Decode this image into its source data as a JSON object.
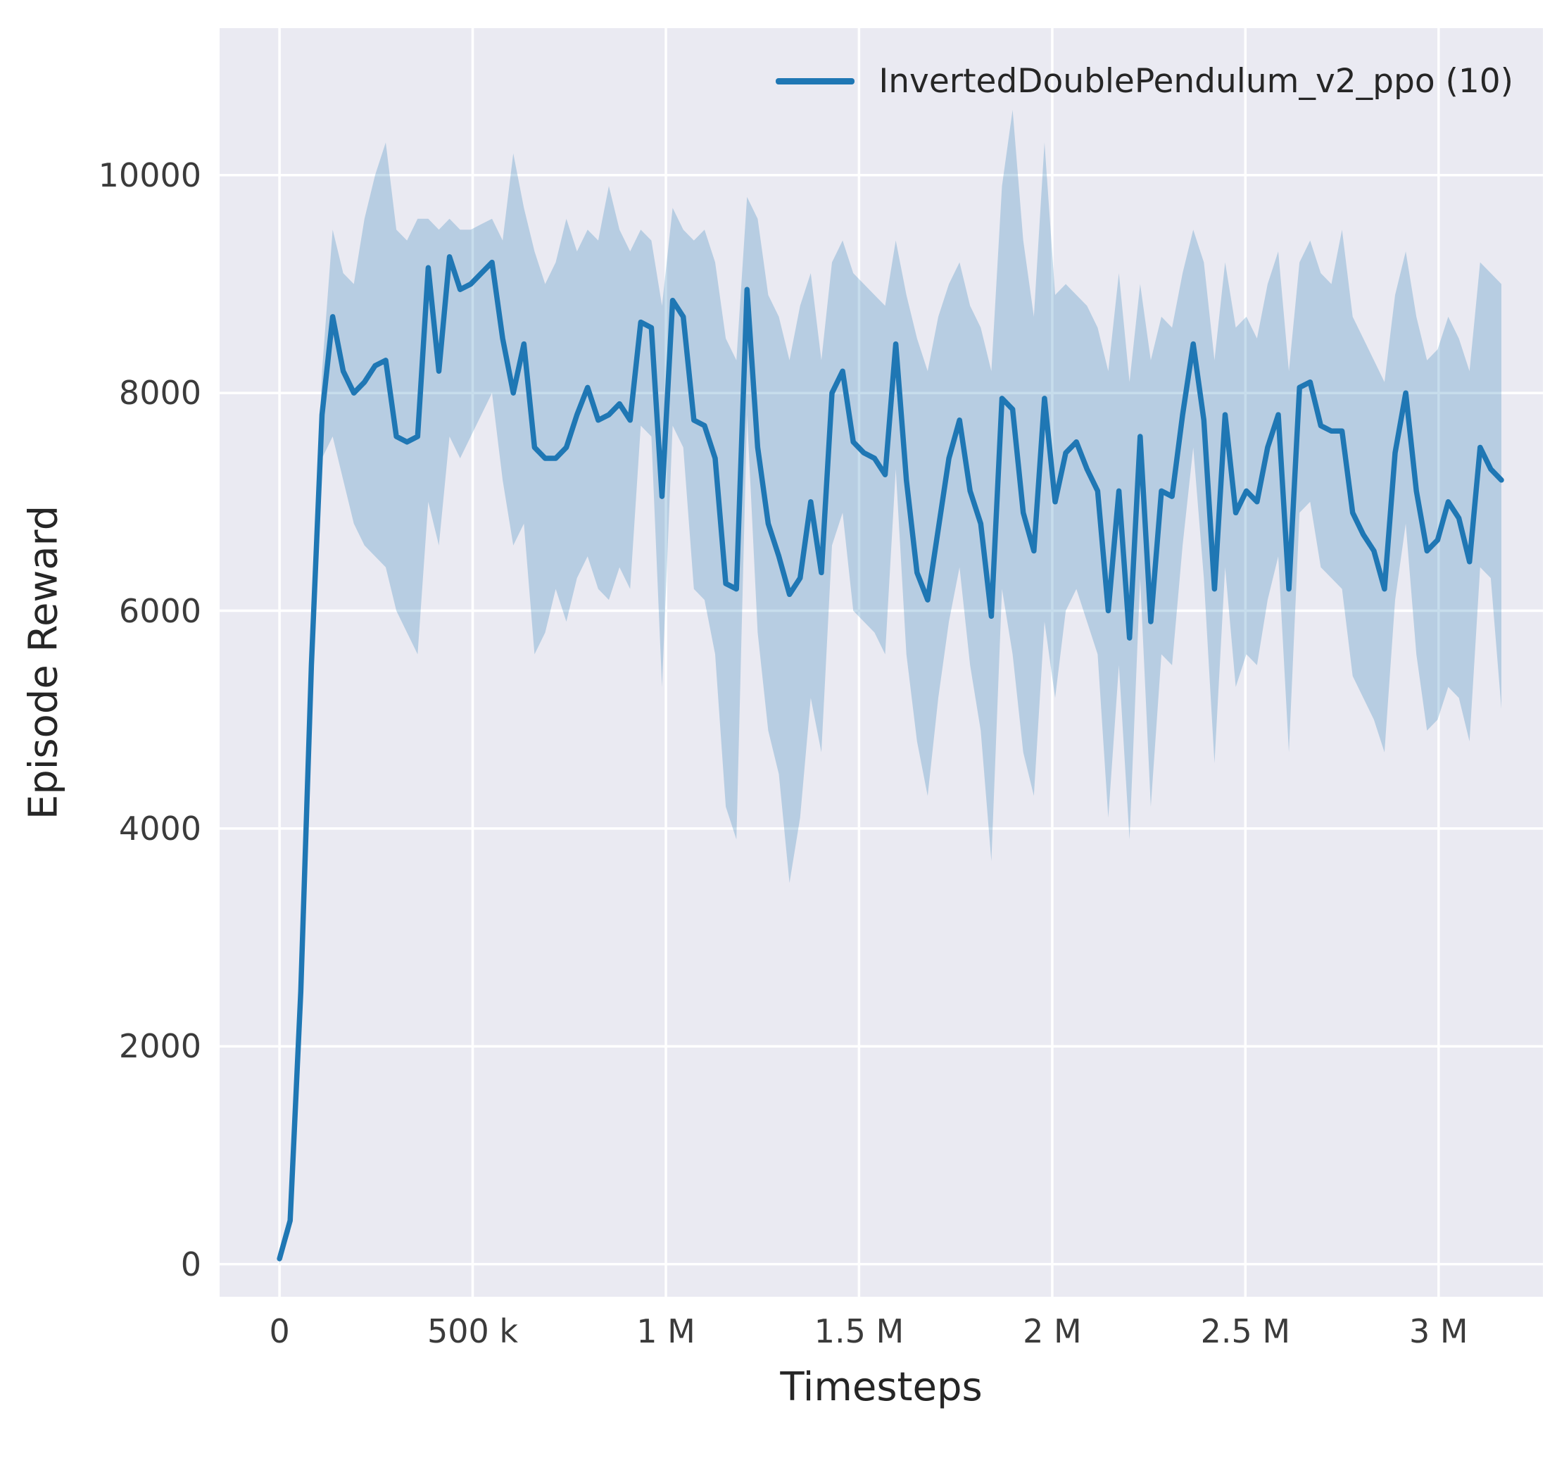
{
  "chart_data": {
    "type": "line",
    "title": "",
    "xlabel": "Timesteps",
    "ylabel": "Episode Reward",
    "grid": true,
    "legend_position": "upper right inside",
    "plot_background": "#eaeaf2",
    "grid_color": "#ffffff",
    "line_color": "#1f77b4",
    "band_color": "#1f77b4",
    "band_opacity": 0.25,
    "xlim": [
      -155000,
      3270000
    ],
    "ylim": [
      -300,
      11350
    ],
    "x_ticks": [
      {
        "value": 0,
        "label": "0"
      },
      {
        "value": 500000,
        "label": "500 k"
      },
      {
        "value": 1000000,
        "label": "1 M"
      },
      {
        "value": 1500000,
        "label": "1.5 M"
      },
      {
        "value": 2000000,
        "label": "2 M"
      },
      {
        "value": 2500000,
        "label": "2.5 M"
      },
      {
        "value": 3000000,
        "label": "3 M"
      }
    ],
    "y_ticks": [
      {
        "value": 0,
        "label": "0"
      },
      {
        "value": 2000,
        "label": "2000"
      },
      {
        "value": 4000,
        "label": "4000"
      },
      {
        "value": 6000,
        "label": "6000"
      },
      {
        "value": 8000,
        "label": "8000"
      },
      {
        "value": 10000,
        "label": "10000"
      }
    ],
    "series": [
      {
        "name": "InvertedDoublePendulum_v2_ppo (10)",
        "x": [
          0,
          27500,
          55000,
          82500,
          110000,
          137500,
          165000,
          192500,
          220000,
          247500,
          275000,
          302500,
          330000,
          357500,
          385000,
          412500,
          440000,
          467500,
          495000,
          522500,
          550000,
          577500,
          605000,
          632500,
          660000,
          687500,
          715000,
          742500,
          770000,
          797500,
          825000,
          852500,
          880000,
          907500,
          935000,
          962500,
          990000,
          1017500,
          1045000,
          1072500,
          1100000,
          1127500,
          1155000,
          1182500,
          1210000,
          1237500,
          1265000,
          1292500,
          1320000,
          1347500,
          1375000,
          1402500,
          1430000,
          1457500,
          1485000,
          1512500,
          1540000,
          1567500,
          1595000,
          1622500,
          1650000,
          1677500,
          1705000,
          1732500,
          1760000,
          1787500,
          1815000,
          1842500,
          1870000,
          1897500,
          1925000,
          1952500,
          1980000,
          2007500,
          2035000,
          2062500,
          2090000,
          2117500,
          2145000,
          2172500,
          2200000,
          2227500,
          2255000,
          2282500,
          2310000,
          2337500,
          2365000,
          2392500,
          2420000,
          2447500,
          2475000,
          2502500,
          2530000,
          2557500,
          2585000,
          2612500,
          2640000,
          2667500,
          2695000,
          2722500,
          2750000,
          2777500,
          2805000,
          2832500,
          2860000,
          2887500,
          2915000,
          2942500,
          2970000,
          2997500,
          3025000,
          3052500,
          3080000,
          3107500,
          3135000,
          3162500
        ],
        "mean": [
          50,
          400,
          2500,
          5500,
          7800,
          8700,
          8200,
          8000,
          8100,
          8250,
          8300,
          7600,
          7550,
          7600,
          9150,
          8200,
          9250,
          8950,
          9000,
          9100,
          9200,
          8500,
          8000,
          8450,
          7500,
          7400,
          7400,
          7500,
          7800,
          8050,
          7750,
          7800,
          7900,
          7750,
          8650,
          8600,
          7050,
          8850,
          8700,
          7750,
          7700,
          7400,
          6250,
          6200,
          8950,
          7500,
          6800,
          6500,
          6150,
          6300,
          7000,
          6350,
          8000,
          8200,
          7550,
          7450,
          7400,
          7250,
          8450,
          7200,
          6350,
          6100,
          6750,
          7400,
          7750,
          7100,
          6800,
          5950,
          7950,
          7850,
          6900,
          6550,
          7950,
          7000,
          7450,
          7550,
          7300,
          7100,
          6000,
          7100,
          5750,
          7600,
          5900,
          7100,
          7050,
          7800,
          8450,
          7750,
          6200,
          7800,
          6900,
          7100,
          7000,
          7500,
          7800,
          6200,
          8050,
          8100,
          7700,
          7650,
          7650,
          6900,
          6700,
          6550,
          6200,
          7450,
          8000,
          7100,
          6550,
          6650,
          7000,
          6850,
          6450,
          7500,
          7300,
          7200
        ],
        "upper": [
          100,
          500,
          2700,
          5800,
          8200,
          9500,
          9100,
          9000,
          9600,
          10000,
          10300,
          9500,
          9400,
          9600,
          9600,
          9500,
          9600,
          9500,
          9500,
          9550,
          9600,
          9400,
          10200,
          9700,
          9300,
          9000,
          9200,
          9600,
          9300,
          9500,
          9400,
          9900,
          9500,
          9300,
          9500,
          9400,
          8800,
          9700,
          9500,
          9400,
          9500,
          9200,
          8500,
          8300,
          9800,
          9600,
          8900,
          8700,
          8300,
          8800,
          9100,
          8300,
          9200,
          9400,
          9100,
          9000,
          8900,
          8800,
          9400,
          8900,
          8500,
          8200,
          8700,
          9000,
          9200,
          8800,
          8600,
          8200,
          9900,
          10600,
          9400,
          8700,
          10300,
          8900,
          9000,
          8900,
          8800,
          8600,
          8200,
          9100,
          8100,
          9000,
          8300,
          8700,
          8600,
          9100,
          9500,
          9200,
          8300,
          9200,
          8600,
          8700,
          8500,
          9000,
          9300,
          8200,
          9200,
          9400,
          9100,
          9000,
          9500,
          8700,
          8500,
          8300,
          8100,
          8900,
          9300,
          8700,
          8300,
          8400,
          8700,
          8500,
          8200,
          9200,
          9100,
          9000
        ],
        "lower": [
          0,
          300,
          2300,
          5200,
          7400,
          7600,
          7200,
          6800,
          6600,
          6500,
          6400,
          6000,
          5800,
          5600,
          7000,
          6600,
          7600,
          7400,
          7600,
          7800,
          8000,
          7200,
          6600,
          6800,
          5600,
          5800,
          6200,
          5900,
          6300,
          6500,
          6200,
          6100,
          6400,
          6200,
          7700,
          7600,
          5300,
          7700,
          7500,
          6200,
          6100,
          5600,
          4200,
          3900,
          7800,
          5800,
          4900,
          4500,
          3500,
          4100,
          5200,
          4700,
          6600,
          6900,
          6000,
          5900,
          5800,
          5600,
          7300,
          5600,
          4800,
          4300,
          5200,
          5900,
          6400,
          5500,
          4900,
          3700,
          6200,
          5600,
          4700,
          4300,
          5900,
          5200,
          6000,
          6200,
          5900,
          5600,
          4100,
          5500,
          3900,
          6300,
          4200,
          5600,
          5500,
          6600,
          7500,
          6300,
          4600,
          6400,
          5300,
          5600,
          5500,
          6100,
          6500,
          4700,
          6900,
          7000,
          6400,
          6300,
          6200,
          5400,
          5200,
          5000,
          4700,
          6100,
          6800,
          5600,
          4900,
          5000,
          5300,
          5200,
          4800,
          6400,
          6300,
          5100
        ]
      }
    ]
  }
}
